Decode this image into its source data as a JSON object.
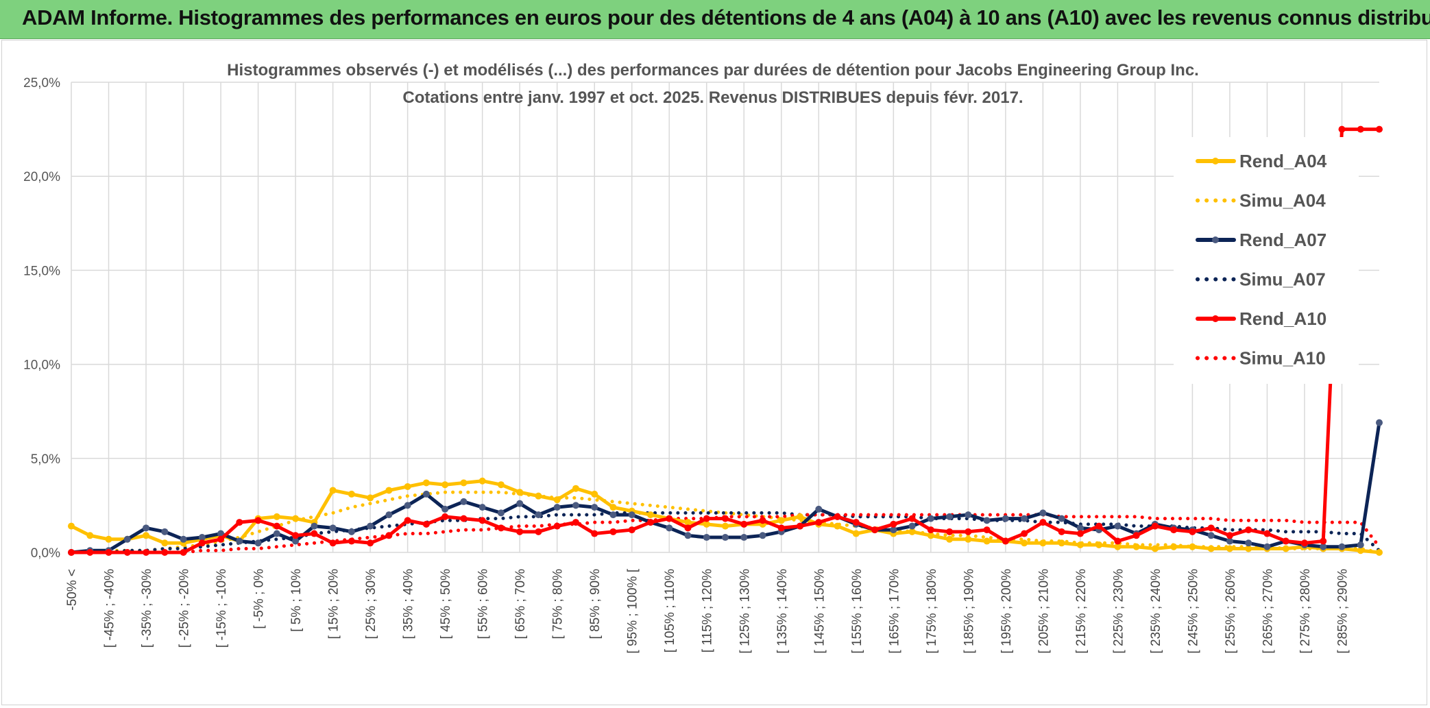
{
  "header": {
    "title": "ADAM Informe. Histogrammes des performances en euros pour des détentions de 4 ans (A04) à 10 ans (A10) avec les revenus connus distribués"
  },
  "colors": {
    "banner": "#7ed17e",
    "a04": "#FFC000",
    "a07": "#0C2456",
    "a10": "#FF0000",
    "grid": "#d9d9d9"
  },
  "chart_data": {
    "type": "line",
    "title": "Histogrammes observés (-) et modélisés (...) des performances par durées de détention pour Jacobs Engineering Group Inc.",
    "subtitle": "Cotations entre janv. 1997 et oct. 2025. Revenus DISTRIBUES depuis févr. 2017.",
    "ylim": [
      0,
      25
    ],
    "y_ticks": [
      "0,0%",
      "5,0%",
      "10,0%",
      "15,0%",
      "20,0%",
      "25,0%"
    ],
    "x_ticks": [
      "-50% <",
      "[ -45% ; -40%",
      "[ -35% ; -30%",
      "[ -25% ; -20%",
      "[ -15% ; -10%",
      "[ -5% ; 0%",
      "[ 5% ; 10%",
      "[ 15% ; 20%",
      "[ 25% ; 30%",
      "[ 35% ; 40%",
      "[ 45% ; 50%",
      "[ 55% ; 60%",
      "[ 65% ; 70%",
      "[ 75% ; 80%",
      "[ 85% ; 90%",
      "[ 95% ; 100% [",
      "[ 105% ; 110%",
      "[ 115% ; 120%",
      "[ 125% ; 130%",
      "[ 135% ; 140%",
      "[ 145% ; 150%",
      "[ 155% ; 160%",
      "[ 165% ; 170%",
      "[ 175% ; 180%",
      "[ 185% ; 190%",
      "[ 195% ; 200%",
      "[ 205% ; 210%",
      "[ 215% ; 220%",
      "[ 225% ; 230%",
      "[ 235% ; 240%",
      "[ 245% ; 250%",
      "[ 255% ; 260%",
      "[ 265% ; 270%",
      "[ 275% ; 280%",
      "[ 285% ; 290%"
    ],
    "n_points": 71,
    "legend_position": "right",
    "series": [
      {
        "name": "Rend_A04",
        "color": "#FFC000",
        "style": "solid",
        "values": [
          1.4,
          0.9,
          0.7,
          0.7,
          0.9,
          0.5,
          0.5,
          0.7,
          0.9,
          0.6,
          1.8,
          1.9,
          1.8,
          1.6,
          3.3,
          3.1,
          2.9,
          3.3,
          3.5,
          3.7,
          3.6,
          3.7,
          3.8,
          3.6,
          3.2,
          3.0,
          2.8,
          3.4,
          3.1,
          2.4,
          2.2,
          2.0,
          1.8,
          1.6,
          1.5,
          1.4,
          1.5,
          1.5,
          1.7,
          1.9,
          1.5,
          1.4,
          1.0,
          1.2,
          1.0,
          1.1,
          0.9,
          0.7,
          0.7,
          0.6,
          0.6,
          0.5,
          0.5,
          0.5,
          0.4,
          0.4,
          0.3,
          0.3,
          0.2,
          0.3,
          0.3,
          0.2,
          0.2,
          0.2,
          0.2,
          0.2,
          0.3,
          0.2,
          0.2,
          0.1,
          0.0
        ]
      },
      {
        "name": "Simu_A04",
        "color": "#FFC000",
        "style": "dotted",
        "values": [
          0.0,
          0.0,
          0.1,
          0.1,
          0.1,
          0.2,
          0.3,
          0.4,
          0.6,
          0.8,
          1.1,
          1.4,
          1.7,
          1.9,
          2.1,
          2.4,
          2.6,
          2.8,
          3.0,
          3.1,
          3.2,
          3.2,
          3.2,
          3.2,
          3.1,
          3.0,
          2.9,
          2.9,
          2.8,
          2.7,
          2.6,
          2.5,
          2.4,
          2.3,
          2.2,
          2.1,
          2.0,
          1.9,
          1.8,
          1.7,
          1.6,
          1.5,
          1.4,
          1.3,
          1.2,
          1.1,
          1.0,
          0.9,
          0.9,
          0.8,
          0.7,
          0.7,
          0.6,
          0.6,
          0.5,
          0.5,
          0.5,
          0.4,
          0.4,
          0.4,
          0.3,
          0.3,
          0.3,
          0.3,
          0.3,
          0.2,
          0.2,
          0.2,
          0.2,
          0.2,
          0.0
        ]
      },
      {
        "name": "Rend_A07",
        "color": "#0C2456",
        "style": "solid",
        "values": [
          0.0,
          0.1,
          0.1,
          0.7,
          1.3,
          1.1,
          0.7,
          0.8,
          1.0,
          0.6,
          0.5,
          1.0,
          0.6,
          1.4,
          1.3,
          1.1,
          1.4,
          2.0,
          2.5,
          3.1,
          2.3,
          2.7,
          2.4,
          2.1,
          2.6,
          2.0,
          2.4,
          2.5,
          2.4,
          2.0,
          2.0,
          1.6,
          1.3,
          0.9,
          0.8,
          0.8,
          0.8,
          0.9,
          1.1,
          1.4,
          2.3,
          1.9,
          1.5,
          1.2,
          1.2,
          1.4,
          1.8,
          1.9,
          2.0,
          1.7,
          1.8,
          1.8,
          2.1,
          1.8,
          1.3,
          1.2,
          1.4,
          1.0,
          1.5,
          1.3,
          1.2,
          0.9,
          0.6,
          0.5,
          0.3,
          0.6,
          0.4,
          0.3,
          0.3,
          0.4,
          6.9
        ]
      },
      {
        "name": "Simu_A07",
        "color": "#0C2456",
        "style": "dotted",
        "values": [
          0.0,
          0.0,
          0.0,
          0.1,
          0.1,
          0.2,
          0.2,
          0.3,
          0.4,
          0.5,
          0.6,
          0.7,
          0.8,
          1.0,
          1.1,
          1.2,
          1.3,
          1.4,
          1.5,
          1.6,
          1.7,
          1.7,
          1.8,
          1.8,
          1.9,
          1.9,
          2.0,
          2.0,
          2.0,
          2.1,
          2.1,
          2.1,
          2.1,
          2.1,
          2.1,
          2.1,
          2.1,
          2.1,
          2.1,
          2.0,
          2.0,
          2.0,
          1.9,
          1.9,
          1.9,
          1.9,
          1.8,
          1.8,
          1.8,
          1.7,
          1.7,
          1.7,
          1.6,
          1.6,
          1.5,
          1.5,
          1.5,
          1.4,
          1.4,
          1.4,
          1.3,
          1.3,
          1.2,
          1.2,
          1.2,
          1.1,
          1.1,
          1.1,
          1.0,
          1.0,
          0.1
        ]
      },
      {
        "name": "Rend_A10",
        "color": "#FF0000",
        "style": "solid",
        "values": [
          0.0,
          0.0,
          0.0,
          0.0,
          0.0,
          0.0,
          0.0,
          0.5,
          0.7,
          1.6,
          1.7,
          1.4,
          0.9,
          1.0,
          0.5,
          0.6,
          0.5,
          0.9,
          1.7,
          1.5,
          1.9,
          1.8,
          1.7,
          1.3,
          1.1,
          1.1,
          1.4,
          1.6,
          1.0,
          1.1,
          1.2,
          1.6,
          1.8,
          1.3,
          1.8,
          1.8,
          1.5,
          1.7,
          1.3,
          1.4,
          1.6,
          1.9,
          1.6,
          1.2,
          1.5,
          1.8,
          1.2,
          1.1,
          1.1,
          1.2,
          0.6,
          1.0,
          1.6,
          1.1,
          1.0,
          1.4,
          0.6,
          0.9,
          1.4,
          1.2,
          1.1,
          1.3,
          0.9,
          1.2,
          1.0,
          0.6,
          0.5,
          0.6,
          22.5,
          22.5,
          22.5
        ]
      },
      {
        "name": "Simu_A10",
        "color": "#FF0000",
        "style": "dotted",
        "values": [
          0.0,
          0.0,
          0.0,
          0.0,
          0.0,
          0.0,
          0.0,
          0.1,
          0.1,
          0.2,
          0.2,
          0.3,
          0.4,
          0.5,
          0.6,
          0.7,
          0.8,
          0.9,
          1.0,
          1.0,
          1.1,
          1.2,
          1.2,
          1.3,
          1.4,
          1.4,
          1.5,
          1.5,
          1.6,
          1.6,
          1.7,
          1.7,
          1.8,
          1.8,
          1.8,
          1.9,
          1.9,
          1.9,
          1.9,
          2.0,
          2.0,
          2.0,
          2.0,
          2.0,
          2.0,
          2.0,
          2.0,
          2.0,
          2.0,
          2.0,
          2.0,
          2.0,
          2.0,
          1.9,
          1.9,
          1.9,
          1.9,
          1.9,
          1.8,
          1.8,
          1.8,
          1.8,
          1.7,
          1.7,
          1.7,
          1.7,
          1.6,
          1.6,
          1.6,
          1.6,
          0.3
        ]
      }
    ]
  }
}
